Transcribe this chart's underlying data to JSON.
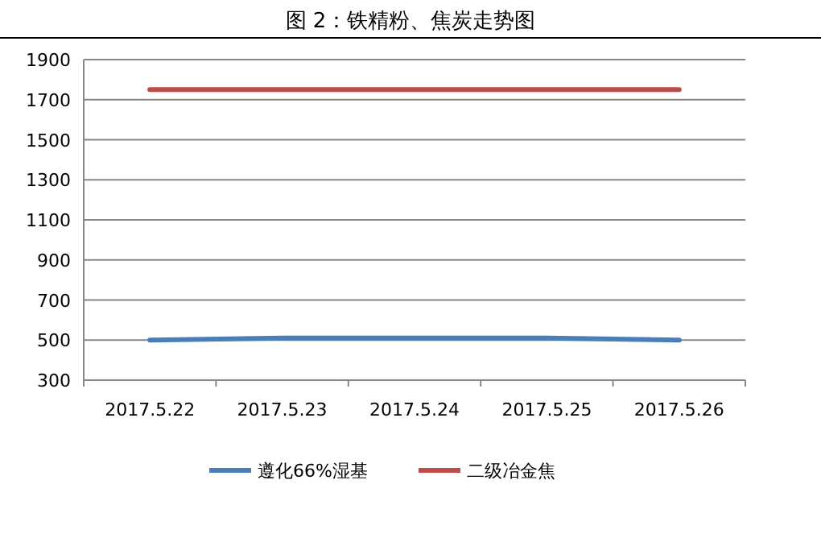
{
  "chart_data": {
    "type": "line",
    "title": "图 2：铁精粉、焦炭走势图",
    "categories": [
      "2017.5.22",
      "2017.5.23",
      "2017.5.24",
      "2017.5.25",
      "2017.5.26"
    ],
    "series": [
      {
        "name": "遵化66%湿基",
        "color": "#4a7ebb",
        "values": [
          500,
          510,
          510,
          510,
          500
        ]
      },
      {
        "name": "二级冶金焦",
        "color": "#be4b48",
        "values": [
          1750,
          1750,
          1750,
          1750,
          1750
        ]
      }
    ],
    "ylim": [
      300,
      1900
    ],
    "yticks": [
      300,
      500,
      700,
      900,
      1100,
      1300,
      1500,
      1700,
      1900
    ],
    "grid": "y",
    "legend": "bottom",
    "marker": "none",
    "line_style": "solid"
  }
}
